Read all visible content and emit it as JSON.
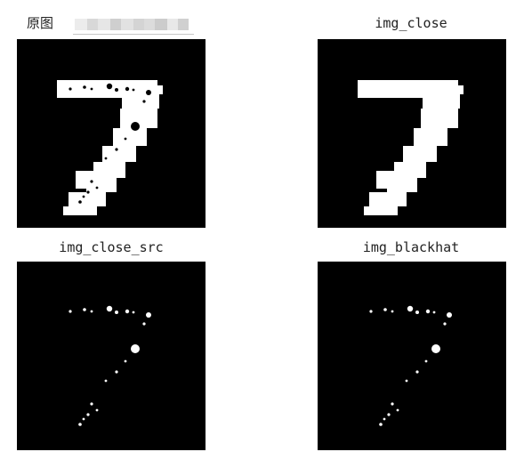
{
  "colors": {
    "background": "#ffffff",
    "panel": "#000000",
    "ink": "#ffffff",
    "title": "#222222"
  },
  "header": {
    "label": "原图",
    "redacted_name": "blurred-text"
  },
  "figures": [
    {
      "title": "img_close"
    },
    {
      "title": "img_close_src"
    },
    {
      "title": "img_blackhat"
    }
  ]
}
